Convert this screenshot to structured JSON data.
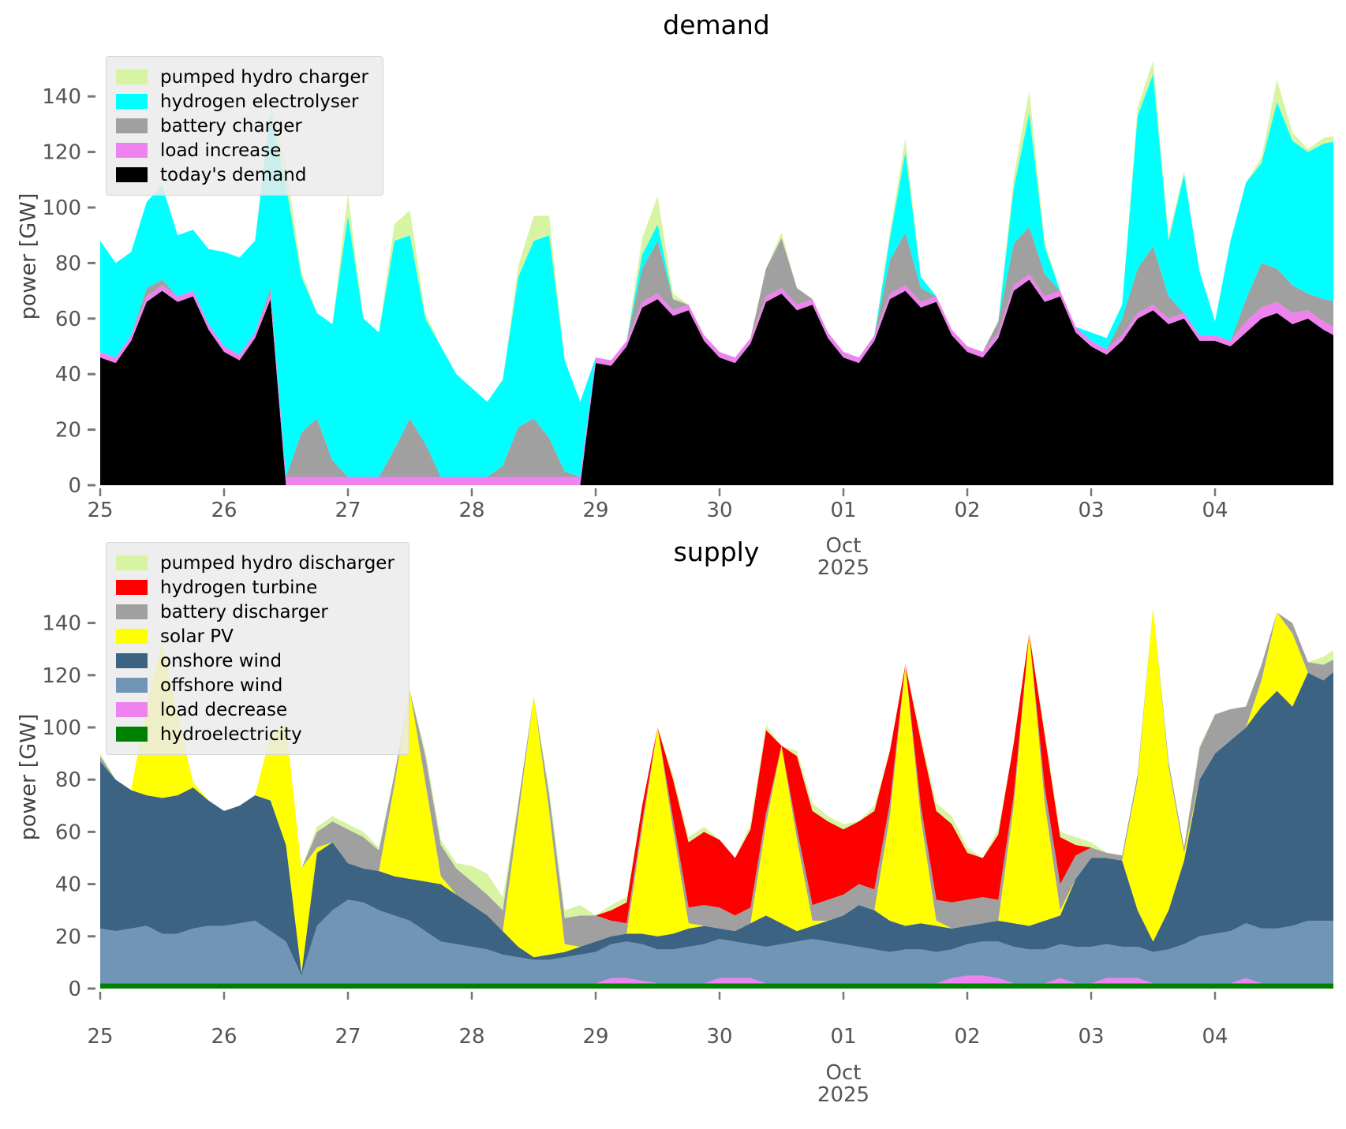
{
  "figure": {
    "background_color": "#ffffff",
    "tick_label_color": "#555555",
    "axis_label": "power [GW]"
  },
  "chart_data": [
    {
      "type": "area",
      "title": "demand",
      "ylabel": "power [GW]",
      "ylim": [
        0,
        150
      ],
      "yticks": [
        0,
        20,
        40,
        60,
        80,
        100,
        120,
        140
      ],
      "grid": false,
      "legend_position": "upper left",
      "x_start_day": 25,
      "x_step_days": 0.125,
      "n_points": 81,
      "xtick_days": [
        0,
        1,
        2,
        3,
        4,
        5,
        6,
        7,
        8,
        9
      ],
      "xtick_labels": [
        "25",
        "26",
        "27",
        "28",
        "29",
        "30",
        "01",
        "02",
        "03",
        "04"
      ],
      "x_extra_label": {
        "day": 6,
        "lines": [
          "Oct",
          "2025"
        ]
      },
      "series": [
        {
          "name": "today's demand",
          "color": "#000000",
          "values": [
            46,
            44,
            52,
            66,
            70,
            66,
            68,
            56,
            48,
            45,
            53,
            67,
            0,
            0,
            0,
            0,
            0,
            0,
            0,
            0,
            0,
            0,
            0,
            0,
            0,
            0,
            0,
            0,
            0,
            0,
            0,
            0,
            44,
            43,
            50,
            64,
            67,
            61,
            63,
            52,
            46,
            44,
            51,
            66,
            69,
            63,
            65,
            53,
            46,
            44,
            52,
            67,
            70,
            64,
            66,
            54,
            48,
            46,
            53,
            70,
            74,
            66,
            68,
            55,
            50,
            47,
            52,
            60,
            63,
            58,
            60,
            52,
            52,
            50,
            55,
            60,
            62,
            58,
            60,
            56,
            53
          ]
        },
        {
          "name": "load increase",
          "color": "#ee82ee",
          "values": [
            2,
            2,
            2,
            2,
            2,
            2,
            2,
            2,
            2,
            2,
            2,
            2,
            3,
            3,
            3,
            3,
            3,
            3,
            3,
            3,
            3,
            3,
            3,
            3,
            3,
            3,
            3,
            3,
            3,
            3,
            3,
            3,
            2,
            2,
            2,
            2,
            2,
            2,
            2,
            2,
            2,
            2,
            2,
            2,
            2,
            2,
            2,
            2,
            2,
            2,
            2,
            2,
            2,
            2,
            2,
            2,
            2,
            2,
            2,
            2,
            2,
            2,
            2,
            2,
            2,
            2,
            2,
            2,
            2,
            2,
            2,
            2,
            2,
            2,
            4,
            4,
            4,
            4,
            3,
            3,
            3
          ]
        },
        {
          "name": "battery charger",
          "color": "#a0a0a0",
          "values": [
            0,
            0,
            0,
            3,
            2,
            0,
            0,
            0,
            0,
            0,
            0,
            2,
            0,
            16,
            21,
            6,
            0,
            0,
            0,
            10,
            21,
            12,
            0,
            0,
            0,
            0,
            4,
            18,
            21,
            14,
            2,
            0,
            0,
            0,
            0,
            12,
            19,
            4,
            0,
            0,
            0,
            0,
            0,
            10,
            18,
            6,
            0,
            0,
            0,
            0,
            0,
            12,
            19,
            5,
            0,
            0,
            0,
            0,
            4,
            15,
            17,
            8,
            0,
            0,
            0,
            0,
            6,
            16,
            21,
            8,
            0,
            0,
            0,
            0,
            8,
            16,
            12,
            10,
            6,
            8,
            10
          ]
        },
        {
          "name": "hydrogen electrolyser",
          "color": "#00ffff",
          "values": [
            40,
            34,
            30,
            31,
            34,
            22,
            22,
            27,
            34,
            35,
            33,
            63,
            105,
            56,
            38,
            49,
            94,
            57,
            52,
            75,
            66,
            45,
            47,
            37,
            32,
            27,
            31,
            54,
            64,
            73,
            40,
            27,
            0,
            0,
            0,
            5,
            6,
            0,
            0,
            0,
            0,
            0,
            0,
            0,
            0,
            0,
            0,
            0,
            0,
            0,
            0,
            8,
            29,
            4,
            0,
            0,
            0,
            0,
            0,
            20,
            41,
            10,
            0,
            0,
            3,
            4,
            5,
            55,
            62,
            20,
            50,
            23,
            5,
            36,
            42,
            36,
            60,
            52,
            51,
            56,
            58
          ]
        },
        {
          "name": "pumped hydro charger",
          "color": "#d7f4a3",
          "values": [
            0,
            0,
            0,
            0,
            0,
            0,
            0,
            0,
            0,
            0,
            0,
            4,
            8,
            2,
            0,
            0,
            8,
            0,
            0,
            6,
            9,
            2,
            0,
            0,
            0,
            0,
            0,
            4,
            9,
            7,
            0,
            0,
            0,
            0,
            0,
            6,
            10,
            2,
            0,
            0,
            0,
            0,
            0,
            0,
            2,
            0,
            0,
            0,
            0,
            0,
            0,
            2,
            5,
            0,
            0,
            0,
            0,
            0,
            0,
            4,
            8,
            2,
            0,
            0,
            0,
            0,
            0,
            3,
            5,
            2,
            1,
            0,
            0,
            0,
            0,
            2,
            8,
            3,
            1,
            2,
            2
          ]
        }
      ]
    },
    {
      "type": "area",
      "title": "supply",
      "ylabel": "power [GW]",
      "ylim": [
        0,
        150
      ],
      "yticks": [
        0,
        20,
        40,
        60,
        80,
        100,
        120,
        140
      ],
      "grid": false,
      "legend_position": "upper left",
      "x_start_day": 25,
      "x_step_days": 0.125,
      "n_points": 81,
      "xtick_days": [
        0,
        1,
        2,
        3,
        4,
        5,
        6,
        7,
        8,
        9
      ],
      "xtick_labels": [
        "25",
        "26",
        "27",
        "28",
        "29",
        "30",
        "01",
        "02",
        "03",
        "04"
      ],
      "x_extra_label": {
        "day": 6,
        "lines": [
          "Oct",
          "2025"
        ]
      },
      "series": [
        {
          "name": "hydroelectricity",
          "color": "#008000",
          "values": [
            2,
            2,
            2,
            2,
            2,
            2,
            2,
            2,
            2,
            2,
            2,
            2,
            2,
            2,
            2,
            2,
            2,
            2,
            2,
            2,
            2,
            2,
            2,
            2,
            2,
            2,
            2,
            2,
            2,
            2,
            2,
            2,
            2,
            2,
            2,
            2,
            2,
            2,
            2,
            2,
            2,
            2,
            2,
            2,
            2,
            2,
            2,
            2,
            2,
            2,
            2,
            2,
            2,
            2,
            2,
            2,
            2,
            2,
            2,
            2,
            2,
            2,
            2,
            2,
            2,
            2,
            2,
            2,
            2,
            2,
            2,
            2,
            2,
            2,
            2,
            2,
            2,
            2,
            2,
            2,
            2
          ]
        },
        {
          "name": "load decrease",
          "color": "#ee82ee",
          "values": [
            0,
            0,
            0,
            0,
            0,
            0,
            0,
            0,
            0,
            0,
            0,
            0,
            0,
            0,
            0,
            0,
            0,
            0,
            0,
            0,
            0,
            0,
            0,
            0,
            0,
            0,
            0,
            0,
            0,
            0,
            0,
            0,
            0,
            2,
            2,
            1,
            0,
            0,
            0,
            0,
            2,
            2,
            2,
            0,
            0,
            0,
            0,
            0,
            0,
            0,
            0,
            0,
            0,
            0,
            0,
            2,
            3,
            3,
            2,
            0,
            0,
            0,
            2,
            0,
            0,
            2,
            2,
            2,
            0,
            0,
            0,
            0,
            0,
            0,
            2,
            0,
            0,
            0,
            0,
            0,
            0
          ]
        },
        {
          "name": "offshore wind",
          "color": "#7195b5",
          "values": [
            21,
            20,
            21,
            22,
            19,
            19,
            21,
            22,
            22,
            23,
            24,
            20,
            16,
            3,
            22,
            28,
            32,
            31,
            28,
            26,
            24,
            20,
            16,
            15,
            14,
            13,
            11,
            10,
            9,
            9,
            10,
            11,
            12,
            13,
            14,
            14,
            13,
            13,
            14,
            15,
            15,
            14,
            13,
            14,
            15,
            16,
            17,
            16,
            15,
            14,
            13,
            12,
            13,
            13,
            12,
            11,
            12,
            13,
            14,
            14,
            13,
            13,
            13,
            14,
            14,
            13,
            12,
            12,
            12,
            13,
            15,
            18,
            19,
            20,
            21,
            21,
            21,
            22,
            24,
            24,
            24
          ]
        },
        {
          "name": "onshore wind",
          "color": "#3d6383",
          "values": [
            64,
            58,
            53,
            50,
            52,
            53,
            54,
            48,
            44,
            45,
            48,
            50,
            37,
            1,
            28,
            26,
            14,
            13,
            15,
            15,
            16,
            19,
            22,
            19,
            16,
            13,
            9,
            4,
            1,
            2,
            2,
            3,
            4,
            3,
            3,
            4,
            5,
            6,
            7,
            7,
            4,
            4,
            8,
            12,
            8,
            4,
            5,
            8,
            11,
            16,
            15,
            12,
            9,
            10,
            10,
            8,
            7,
            7,
            8,
            9,
            9,
            11,
            11,
            26,
            34,
            33,
            33,
            14,
            4,
            15,
            32,
            60,
            69,
            73,
            75,
            85,
            91,
            84,
            95,
            92,
            97
          ]
        },
        {
          "name": "solar PV",
          "color": "#ffff00",
          "values": [
            0,
            0,
            0,
            35,
            60,
            30,
            2,
            0,
            0,
            0,
            0,
            25,
            46,
            40,
            2,
            0,
            0,
            0,
            0,
            35,
            72,
            38,
            3,
            0,
            0,
            0,
            0,
            50,
            100,
            55,
            3,
            0,
            0,
            0,
            0,
            40,
            80,
            40,
            2,
            0,
            0,
            0,
            0,
            35,
            68,
            35,
            2,
            0,
            0,
            0,
            0,
            40,
            100,
            40,
            2,
            0,
            0,
            0,
            0,
            45,
            112,
            45,
            2,
            0,
            0,
            0,
            0,
            50,
            128,
            55,
            3,
            0,
            0,
            0,
            0,
            10,
            30,
            28,
            0,
            0,
            0
          ]
        },
        {
          "name": "battery discharger",
          "color": "#a0a0a0",
          "values": [
            2,
            0,
            0,
            0,
            0,
            0,
            0,
            0,
            0,
            0,
            0,
            0,
            0,
            0,
            6,
            8,
            13,
            12,
            8,
            4,
            0,
            10,
            12,
            10,
            9,
            8,
            8,
            5,
            0,
            6,
            10,
            12,
            10,
            6,
            4,
            3,
            0,
            4,
            6,
            8,
            8,
            6,
            6,
            4,
            0,
            4,
            6,
            8,
            8,
            8,
            8,
            5,
            0,
            5,
            8,
            10,
            10,
            10,
            8,
            4,
            0,
            6,
            10,
            9,
            4,
            2,
            2,
            2,
            0,
            2,
            2,
            12,
            15,
            12,
            8,
            6,
            0,
            4,
            4,
            6,
            4
          ]
        },
        {
          "name": "hydrogen turbine",
          "color": "#ff0000",
          "values": [
            0,
            0,
            0,
            0,
            0,
            0,
            0,
            0,
            0,
            0,
            0,
            0,
            0,
            0,
            0,
            0,
            0,
            0,
            0,
            0,
            0,
            0,
            0,
            0,
            0,
            0,
            0,
            0,
            0,
            0,
            0,
            0,
            0,
            4,
            8,
            6,
            0,
            15,
            25,
            28,
            26,
            22,
            30,
            32,
            0,
            28,
            36,
            30,
            25,
            24,
            30,
            20,
            0,
            25,
            34,
            30,
            18,
            15,
            25,
            20,
            0,
            20,
            18,
            4,
            0,
            0,
            0,
            0,
            0,
            0,
            0,
            0,
            0,
            0,
            0,
            0,
            0,
            0,
            0,
            0,
            0
          ]
        },
        {
          "name": "pumped hydro discharger",
          "color": "#d7f4a3",
          "values": [
            1,
            0,
            0,
            0,
            0,
            0,
            0,
            0,
            0,
            0,
            0,
            0,
            0,
            0,
            2,
            2,
            2,
            2,
            1,
            0,
            0,
            2,
            2,
            2,
            6,
            8,
            5,
            0,
            0,
            2,
            3,
            4,
            0,
            2,
            2,
            0,
            0,
            2,
            2,
            2,
            0,
            0,
            2,
            2,
            0,
            2,
            3,
            2,
            2,
            0,
            2,
            0,
            0,
            2,
            3,
            3,
            2,
            0,
            2,
            0,
            0,
            2,
            2,
            3,
            2,
            0,
            0,
            0,
            0,
            0,
            0,
            1,
            0,
            0,
            0,
            0,
            0,
            0,
            0,
            3,
            4
          ]
        }
      ]
    }
  ]
}
